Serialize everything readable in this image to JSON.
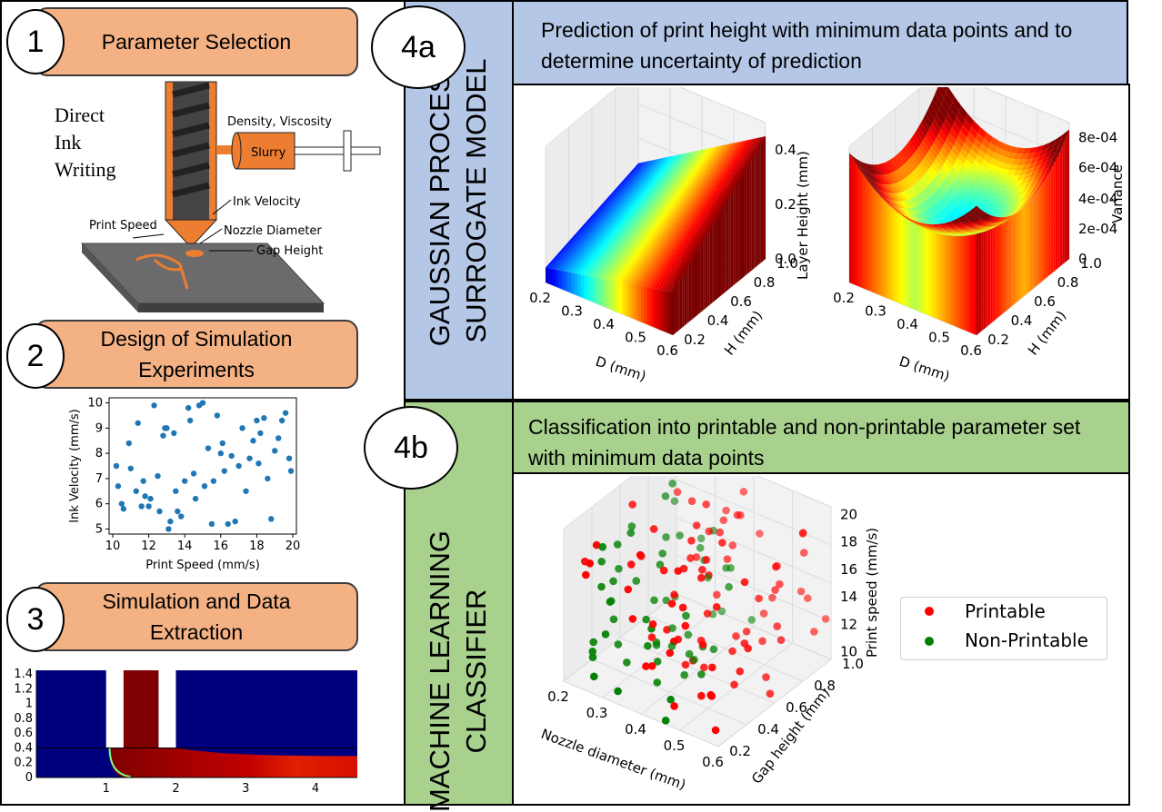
{
  "steps": [
    {
      "num": "1",
      "title": "Parameter Selection"
    },
    {
      "num": "2",
      "title": "Design of Simulation Experiments"
    },
    {
      "num": "3",
      "title": "Simulation and Data Extraction"
    },
    {
      "num": "4a",
      "title": "Prediction of print height with minimum data points and to determine uncertainty of prediction"
    },
    {
      "num": "4b",
      "title": "Classification into printable and non-printable parameter set with minimum data points"
    }
  ],
  "sidebars": {
    "gp_line1": "GAUSSIAN PROCESS",
    "gp_line2": "SURROGATE MODEL",
    "ml_line1": "MACHINE LEARNING",
    "ml_line2": "CLASSIFIER"
  },
  "diw": {
    "title_l1": "Direct",
    "title_l2": "Ink",
    "title_l3": "Writing",
    "density": "Density, Viscosity",
    "slurry": "Slurry",
    "ink_velocity": "Ink Velocity",
    "print_speed": "Print Speed",
    "nozzle_diameter": "Nozzle Diameter",
    "gap_height": "Gap Height"
  },
  "colors": {
    "pill": "#f4b183",
    "gp_blue": "#b4c7e7",
    "ml_green": "#a9d18e",
    "scatter": "#1f77b4",
    "printable": "#ff0000",
    "non_printable": "#008000"
  },
  "chart_data": [
    {
      "type": "scatter",
      "xlabel": "Print Speed (mm/s)",
      "ylabel": "Ink Velocity (mm/s)",
      "xticks": [
        "10",
        "12",
        "14",
        "16",
        "18",
        "20"
      ],
      "yticks": [
        "5",
        "6",
        "7",
        "8",
        "9",
        "10"
      ],
      "xlim": [
        9.8,
        20.2
      ],
      "ylim": [
        4.8,
        10.2
      ],
      "x": [
        10.2,
        10.3,
        10.5,
        10.6,
        10.9,
        11.0,
        11.3,
        11.4,
        11.6,
        11.8,
        12.0,
        12.1,
        12.3,
        12.5,
        12.6,
        12.8,
        13.0,
        13.1,
        13.2,
        13.4,
        13.5,
        13.6,
        13.8,
        14.0,
        14.2,
        14.3,
        14.5,
        14.6,
        14.8,
        15.0,
        15.1,
        15.3,
        15.5,
        15.6,
        15.8,
        16.0,
        16.2,
        16.4,
        16.6,
        16.8,
        17.0,
        17.2,
        17.4,
        17.6,
        17.8,
        18.0,
        18.2,
        18.4,
        18.6,
        18.8,
        19.0,
        19.2,
        19.4,
        19.6,
        19.8,
        19.9,
        16.1,
        12.9,
        18.1,
        11.7
      ],
      "y": [
        7.5,
        6.7,
        6.0,
        5.8,
        8.4,
        7.4,
        6.5,
        9.2,
        5.9,
        6.3,
        5.9,
        6.2,
        9.9,
        7.1,
        5.7,
        8.7,
        9.0,
        5.0,
        5.3,
        8.8,
        6.5,
        5.7,
        5.5,
        6.9,
        9.8,
        9.3,
        7.2,
        6.2,
        9.9,
        10.0,
        6.7,
        8.2,
        5.2,
        6.9,
        9.5,
        8.0,
        7.3,
        5.2,
        7.9,
        5.3,
        7.5,
        9.0,
        6.5,
        7.8,
        8.5,
        9.3,
        8.8,
        9.4,
        7.0,
        5.4,
        8.1,
        8.6,
        9.3,
        9.6,
        7.8,
        7.3,
        8.4,
        9.0,
        7.6,
        6.9
      ]
    },
    {
      "type": "surface",
      "title": "",
      "xlabel": "D (mm)",
      "ylabel": "H (mm)",
      "zlabel": "Layer Height (mm)",
      "xticks": [
        "0.2",
        "0.3",
        "0.4",
        "0.5",
        "0.6"
      ],
      "yticks": [
        "0.2",
        "0.4",
        "0.6",
        "0.8",
        "1.0"
      ],
      "zticks": [
        "0.0",
        "0.2",
        "0.4"
      ],
      "xlim": [
        0.2,
        0.6
      ],
      "ylim": [
        0.2,
        1.0
      ],
      "zlim": [
        0.0,
        0.45
      ]
    },
    {
      "type": "surface",
      "title": "",
      "xlabel": "D (mm)",
      "ylabel": "H (mm)",
      "zlabel": "Variance",
      "xticks": [
        "0.2",
        "0.3",
        "0.4",
        "0.5",
        "0.6"
      ],
      "yticks": [
        "0.2",
        "0.4",
        "0.6",
        "0.8",
        "1.0"
      ],
      "zticks": [
        "0",
        "2e-04",
        "4e-04",
        "6e-04",
        "8e-04"
      ],
      "xlim": [
        0.2,
        0.6
      ],
      "ylim": [
        0.2,
        1.0
      ],
      "zlim": [
        0,
        0.0009
      ]
    },
    {
      "type": "scatter3d",
      "xlabel": "Nozzle diameter (mm)",
      "ylabel": "Gap height (mm)",
      "zlabel": "Print speed (mm/s)",
      "xticks": [
        "0.2",
        "0.3",
        "0.4",
        "0.5",
        "0.6"
      ],
      "yticks": [
        "0.2",
        "0.4",
        "0.6",
        "0.8",
        "1.0"
      ],
      "zticks": [
        "10",
        "12",
        "14",
        "16",
        "18",
        "20"
      ],
      "legend": [
        "Printable",
        "Non-Printable"
      ],
      "legend_position": "right"
    },
    {
      "type": "heatmap",
      "xticks": [
        "1",
        "2",
        "3",
        "4"
      ],
      "yticks": [
        "0",
        "0.2",
        "0.4",
        "0.6",
        "0.8",
        "1",
        "1.2",
        "1.4"
      ],
      "xlim": [
        0,
        4.6
      ],
      "ylim": [
        0,
        1.45
      ]
    }
  ]
}
